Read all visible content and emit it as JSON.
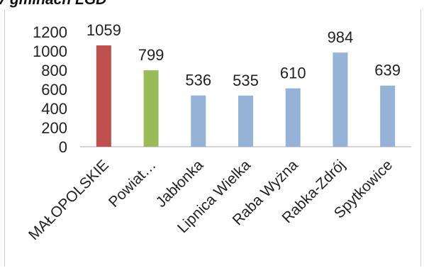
{
  "chart_data": {
    "type": "bar",
    "title": "V gminach LGD",
    "xlabel": "",
    "ylabel": "",
    "categories": [
      "MAŁOPOLSKIE",
      "Powiat…",
      "Jabłonka",
      "Lipnica Wielka",
      "Raba Wyżna",
      "Rabka-Zdrój",
      "Spytkowice"
    ],
    "values": [
      1059,
      799,
      536,
      535,
      610,
      984,
      639
    ],
    "data_labels": [
      "1059",
      "799",
      "536",
      "535",
      "610",
      "984",
      "639"
    ],
    "colors": [
      "#c0504d",
      "#9bbb59",
      "#95b3d7",
      "#95b3d7",
      "#95b3d7",
      "#95b3d7",
      "#95b3d7"
    ],
    "ylim": [
      0,
      1200
    ],
    "yticks": [
      "0",
      "200",
      "400",
      "600",
      "800",
      "1000",
      "1200"
    ],
    "grid": false,
    "legend": "none"
  }
}
